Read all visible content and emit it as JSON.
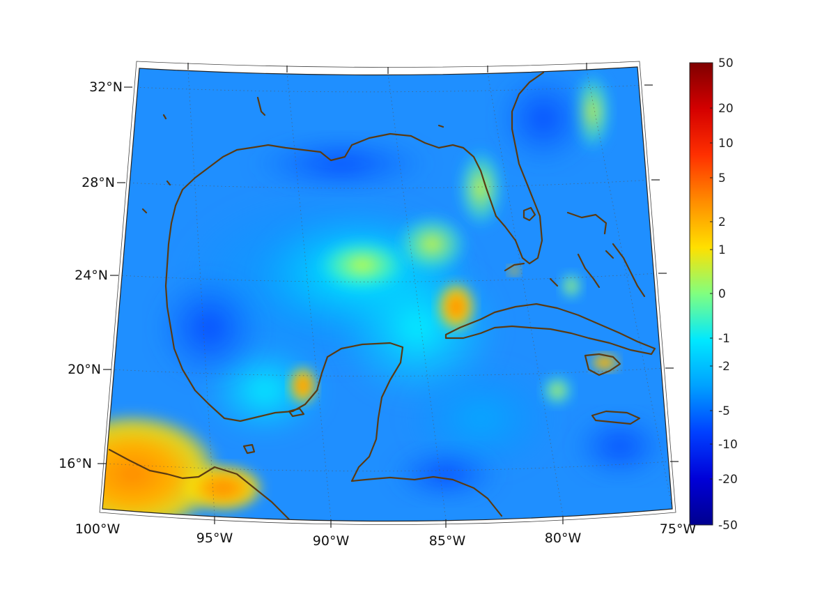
{
  "map": {
    "projection": "conic",
    "coastline_color": "#5a3a12",
    "lon_labels": [
      "100°W",
      "95°W",
      "90°W",
      "85°W",
      "80°W",
      "75°W"
    ],
    "lat_labels": [
      "32°N",
      "28°N",
      "24°N",
      "20°N",
      "16°N"
    ],
    "lon_values": [
      -100,
      -95,
      -90,
      -85,
      -80,
      -75
    ],
    "lat_values": [
      32,
      28,
      24,
      20,
      16
    ],
    "extent": {
      "lon": [
        -100,
        -75
      ],
      "lat": [
        14,
        33
      ]
    },
    "grid": true,
    "grid_style": "dotted",
    "colormap": "jet"
  },
  "colorbar": {
    "labels": [
      "50",
      "20",
      "10",
      "5",
      "2",
      "1",
      "0",
      "-1",
      "-2",
      "-5",
      "-10",
      "-20",
      "-50"
    ],
    "values": [
      50,
      20,
      10,
      5,
      2,
      1,
      0,
      -1,
      -2,
      -5,
      -10,
      -20,
      -50
    ],
    "top_color": "#7f0000",
    "bottom_color": "#00008f"
  }
}
